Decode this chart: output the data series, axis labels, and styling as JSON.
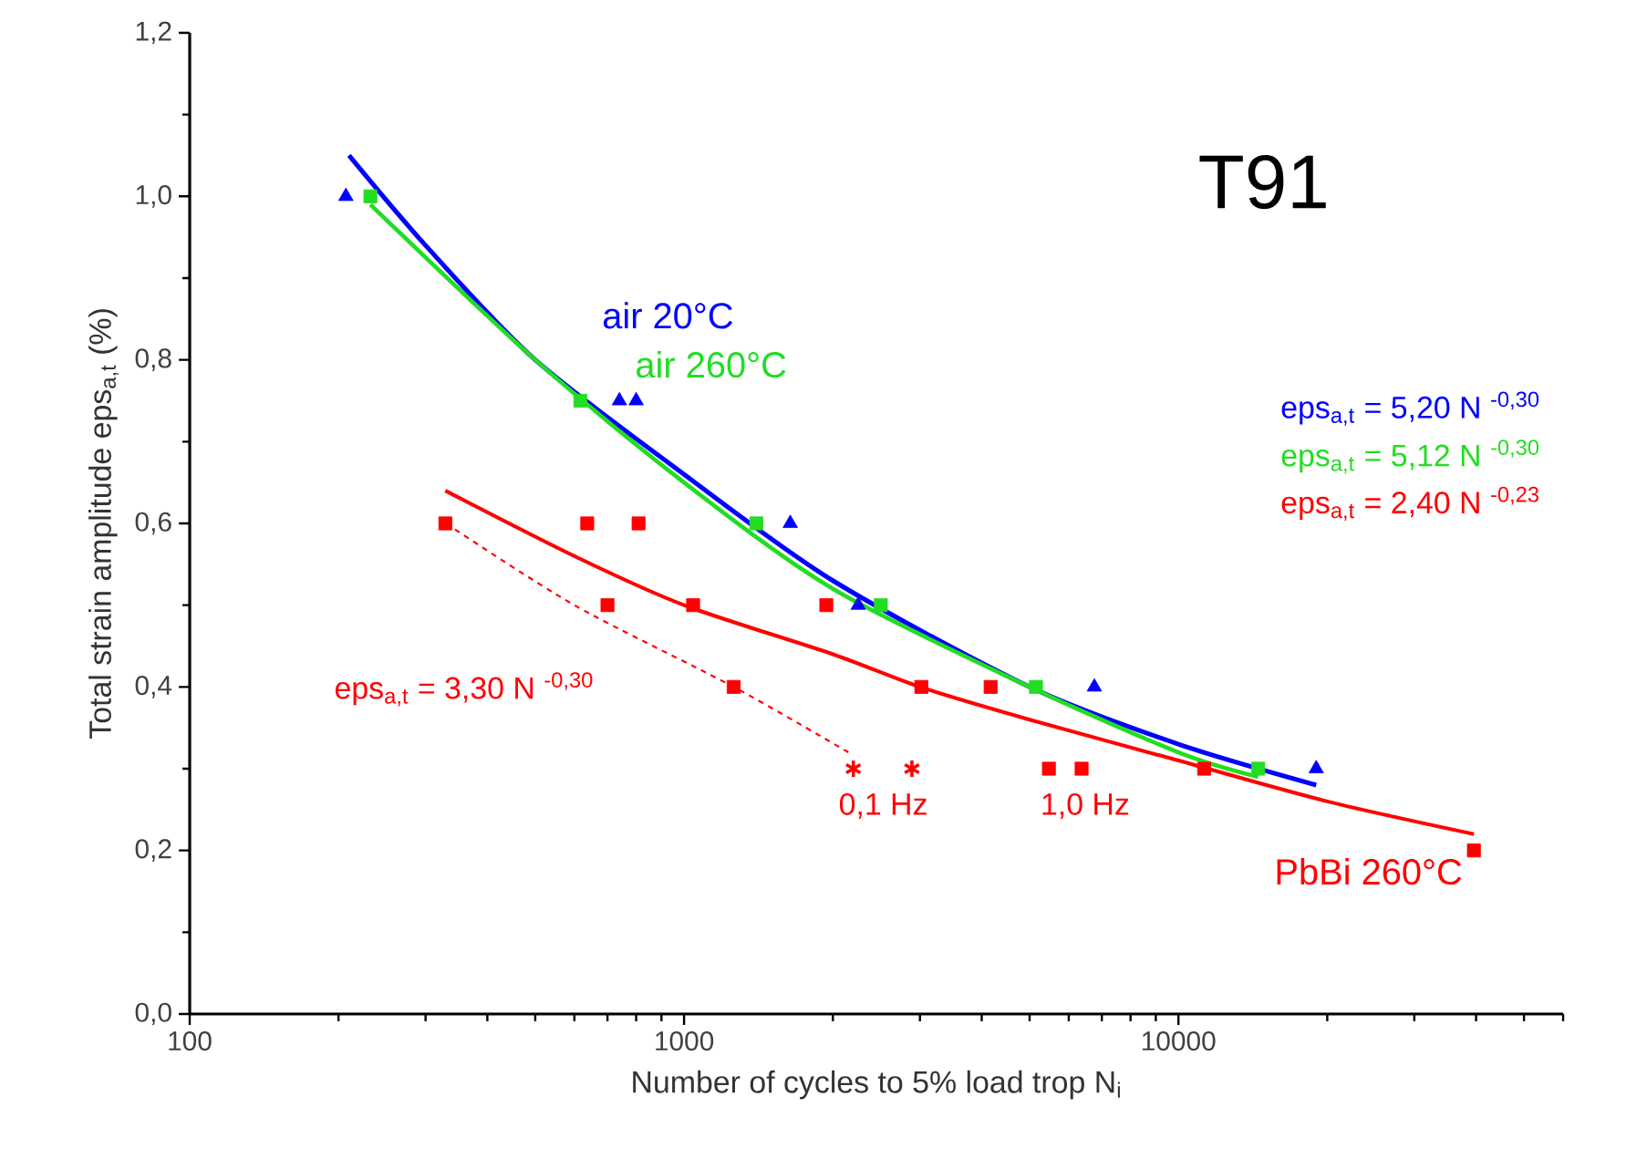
{
  "chart_data": {
    "type": "scatter",
    "title": "T91",
    "xlabel": "Number of cycles to 5% load trop N$_{i}$",
    "ylabel": "Total strain amplitude  eps$_{a,t}$  (%)",
    "log": "x",
    "grid": false,
    "xlim": [
      100,
      60000
    ],
    "xticks": [
      100,
      1000,
      10000
    ],
    "ylim": [
      0,
      1.2
    ],
    "yticks": [
      {
        "value": 0,
        "label": "0,0"
      },
      {
        "value": 0.2,
        "label": "0,2"
      },
      {
        "value": 0.4,
        "label": "0,4"
      },
      {
        "value": 0.6,
        "label": "0,6"
      },
      {
        "value": 0.8,
        "label": "0,8"
      },
      {
        "value": 1.0,
        "label": "1,0"
      },
      {
        "value": 1.2,
        "label": "1,2"
      }
    ],
    "annotations": [
      "eps$_{a,t}$ = 5,20 N $^{-0,30}$",
      "eps$_{a,t}$ = 5,12 N $^{-0,30}$",
      "eps$_{a,t}$ = 2,40 N $^{-0,23}$",
      "0,1 Hz",
      "1,0 Hz"
    ],
    "series": [
      {
        "name": "air 20°C",
        "marker": "triangle",
        "color": "#0000ff",
        "x": [
          207,
          740,
          800,
          1640,
          2250,
          6760,
          19000
        ],
        "values": [
          1.0,
          0.75,
          0.75,
          0.6,
          0.5,
          0.4,
          0.3
        ]
      },
      {
        "name": "air 260°C",
        "marker": "square",
        "color": "#22dd22",
        "x": [
          232,
          617,
          1400,
          2500,
          5150,
          14500
        ],
        "values": [
          1.0,
          0.75,
          0.6,
          0.5,
          0.4,
          0.3
        ]
      },
      {
        "name": "PbBi 260°C",
        "marker": "square",
        "color": "#ff0000",
        "x": [
          329,
          637,
          809,
          700,
          1043,
          1940,
          1260,
          3020,
          4170,
          5470,
          6370,
          11270,
          39600
        ],
        "values": [
          0.6,
          0.6,
          0.6,
          0.5,
          0.5,
          0.5,
          0.4,
          0.4,
          0.4,
          0.3,
          0.3,
          0.3,
          0.2
        ]
      },
      {
        "marker": "cross",
        "color": "#ff0000",
        "x": [
          2200,
          2890
        ],
        "values": [
          0.3,
          0.3
        ]
      },
      {
        "type": "line",
        "marker": "none",
        "line_style": "solid",
        "color": "#0000ff",
        "x": [
          210,
          300,
          500,
          1000,
          2000,
          5000,
          10000,
          19000
        ],
        "values": [
          1.05,
          0.94,
          0.8,
          0.66,
          0.53,
          0.4,
          0.33,
          0.28
        ]
      },
      {
        "type": "line",
        "marker": "none",
        "line_style": "solid",
        "color": "#22dd22",
        "x": [
          232,
          500,
          1000,
          2000,
          5000,
          10000,
          14500
        ],
        "values": [
          0.99,
          0.8,
          0.65,
          0.52,
          0.4,
          0.32,
          0.29
        ]
      },
      {
        "type": "line",
        "marker": "none",
        "line_style": "solid",
        "color": "#ff0000",
        "x": [
          329,
          600,
          1000,
          2000,
          3000,
          5000,
          10000,
          20000,
          39600
        ],
        "values": [
          0.64,
          0.56,
          0.5,
          0.44,
          0.4,
          0.36,
          0.31,
          0.26,
          0.22
        ]
      },
      {
        "name": "eps$_{a,t}$ = 3,30 N $^{-0,30}$",
        "type": "line",
        "marker": "none",
        "line_style": "dashed",
        "color": "#ff0000",
        "x": [
          330,
          600,
          1260,
          2150
        ],
        "values": [
          0.6,
          0.5,
          0.4,
          0.32
        ]
      }
    ]
  }
}
